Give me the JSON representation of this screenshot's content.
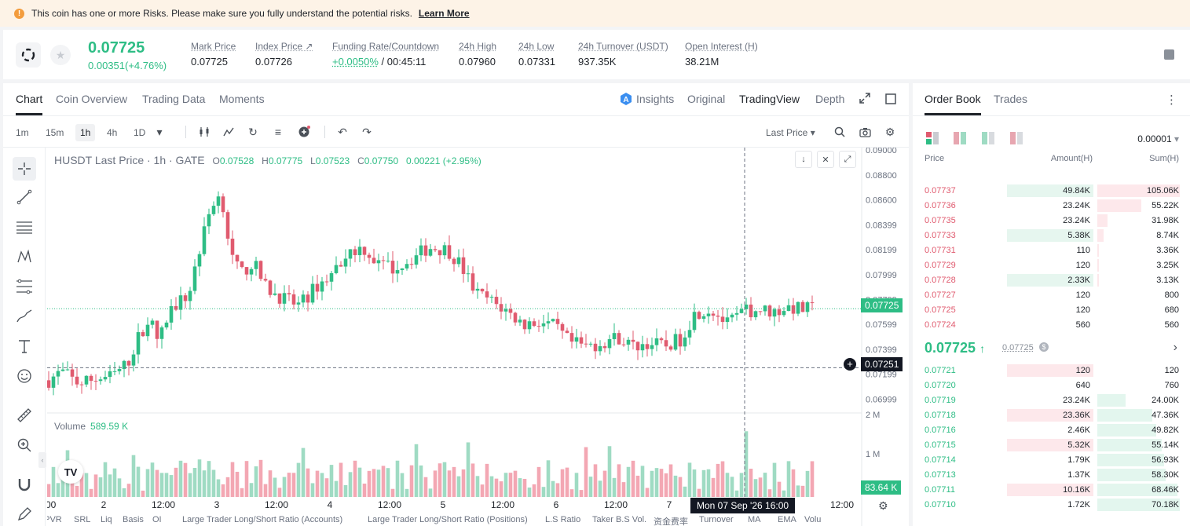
{
  "banner": {
    "message": "This coin has one or more Risks. Please make sure you fully understand the potential risks.",
    "link": "Learn More",
    "icon": "warning-icon"
  },
  "ticker": {
    "last_price": "0.07725",
    "change": "0.00351(+4.76%)",
    "stats": [
      {
        "label": "Mark Price",
        "value": "0.07725"
      },
      {
        "label": "Index Price ↗",
        "value": "0.07726"
      },
      {
        "label": "Funding Rate/Countdown",
        "value_rate": "+0.0050%",
        "value_countdown": "/ 00:45:11"
      },
      {
        "label": "24h High",
        "value": "0.07960"
      },
      {
        "label": "24h Low",
        "value": "0.07331"
      },
      {
        "label": "24h Turnover (USDT)",
        "value": "937.35K"
      },
      {
        "label": "Open Interest (H)",
        "value": "38.21M"
      }
    ]
  },
  "chart_tabs": [
    "Chart",
    "Coin Overview",
    "Trading Data",
    "Moments"
  ],
  "view_tabs": {
    "insights": "Insights",
    "original": "Original",
    "tradingview": "TradingView",
    "depth": "Depth"
  },
  "timeframes": [
    "1m",
    "15m",
    "1h",
    "4h",
    "1D"
  ],
  "price_source": "Last Price",
  "legend": {
    "symbol": "HUSDT Last Price · 1h · GATE",
    "o": "0.07528",
    "h": "0.07775",
    "l": "0.07523",
    "c": "0.07750",
    "chg": "0.00221 (+2.95%)"
  },
  "volume_legend": {
    "label": "Volume",
    "value": "589.59 K"
  },
  "chart_data": {
    "type": "candlestick",
    "y_ticks": [
      "0.09000",
      "0.08800",
      "0.08600",
      "0.08399",
      "0.08199",
      "0.07999",
      "0.07799",
      "0.07599",
      "0.07399",
      "0.07199",
      "0.06999"
    ],
    "volume_ticks": [
      "2 M",
      "1 M"
    ],
    "x_ticks": [
      ":00",
      "2",
      "12:00",
      "3",
      "12:00",
      "4",
      "12:00",
      "5",
      "12:00",
      "6",
      "12:00",
      "7",
      "12:00"
    ],
    "current_price_tag": "0.07725",
    "crosshair_price_tag": "0.07251",
    "crosshair_time": "Mon 07 Sep '26   16:00",
    "volume_tag": "83.64 K",
    "ylim": [
      0.069,
      0.0902
    ]
  },
  "indicators": [
    "LPVR",
    "SRL",
    "Liq",
    "Basis",
    "OI",
    "Large Trader Long/Short Ratio (Accounts)",
    "Large Trader Long/Short Ratio (Positions)",
    "L.S Ratio",
    "Taker B.S Vol.",
    "资金费率",
    "Turnover",
    "MA",
    "EMA",
    "Volu"
  ],
  "orderbook": {
    "tabs": [
      "Order Book",
      "Trades"
    ],
    "precision": "0.00001",
    "headers": {
      "price": "Price",
      "amount": "Amount(H)",
      "sum": "Sum(H)"
    },
    "asks": [
      {
        "price": "0.07737",
        "amount": "49.84K",
        "sum": "105.06K",
        "amt_pct": 0.38,
        "sum_pct": 1.0
      },
      {
        "price": "0.07736",
        "amount": "23.24K",
        "sum": "55.22K",
        "amt_pct": 0,
        "sum_pct": 0.53
      },
      {
        "price": "0.07735",
        "amount": "23.24K",
        "sum": "31.98K",
        "amt_pct": 0,
        "sum_pct": 0.12
      },
      {
        "price": "0.07733",
        "amount": "5.38K",
        "sum": "8.74K",
        "amt_pct": 0.38,
        "sum_pct": 0.08
      },
      {
        "price": "0.07731",
        "amount": "110",
        "sum": "3.36K",
        "amt_pct": 0,
        "sum_pct": 0.02
      },
      {
        "price": "0.07729",
        "amount": "120",
        "sum": "3.25K",
        "amt_pct": 0,
        "sum_pct": 0.02
      },
      {
        "price": "0.07728",
        "amount": "2.33K",
        "sum": "3.13K",
        "amt_pct": 0.38,
        "sum_pct": 0.02
      },
      {
        "price": "0.07727",
        "amount": "120",
        "sum": "800",
        "amt_pct": 0,
        "sum_pct": 0
      },
      {
        "price": "0.07725",
        "amount": "120",
        "sum": "680",
        "amt_pct": 0,
        "sum_pct": 0
      },
      {
        "price": "0.07724",
        "amount": "560",
        "sum": "560",
        "amt_pct": 0,
        "sum_pct": 0
      }
    ],
    "mid_price": "0.07725",
    "mid_mark": "0.07725",
    "bids": [
      {
        "price": "0.07721",
        "amount": "120",
        "sum": "120",
        "amt_pct": 0.38,
        "sum_pct": 0
      },
      {
        "price": "0.07720",
        "amount": "640",
        "sum": "760",
        "amt_pct": 0,
        "sum_pct": 0
      },
      {
        "price": "0.07719",
        "amount": "23.24K",
        "sum": "24.00K",
        "amt_pct": 0,
        "sum_pct": 0.34
      },
      {
        "price": "0.07718",
        "amount": "23.36K",
        "sum": "47.36K",
        "amt_pct": 0.38,
        "sum_pct": 0.67
      },
      {
        "price": "0.07716",
        "amount": "2.46K",
        "sum": "49.82K",
        "amt_pct": 0,
        "sum_pct": 0.71
      },
      {
        "price": "0.07715",
        "amount": "5.32K",
        "sum": "55.14K",
        "amt_pct": 0.38,
        "sum_pct": 0.78
      },
      {
        "price": "0.07714",
        "amount": "1.79K",
        "sum": "56.93K",
        "amt_pct": 0,
        "sum_pct": 0.81
      },
      {
        "price": "0.07713",
        "amount": "1.37K",
        "sum": "58.30K",
        "amt_pct": 0,
        "sum_pct": 0.83
      },
      {
        "price": "0.07711",
        "amount": "10.16K",
        "sum": "68.46K",
        "amt_pct": 0.38,
        "sum_pct": 0.97
      },
      {
        "price": "0.07710",
        "amount": "1.72K",
        "sum": "70.18K",
        "amt_pct": 0,
        "sum_pct": 1.0
      }
    ]
  }
}
